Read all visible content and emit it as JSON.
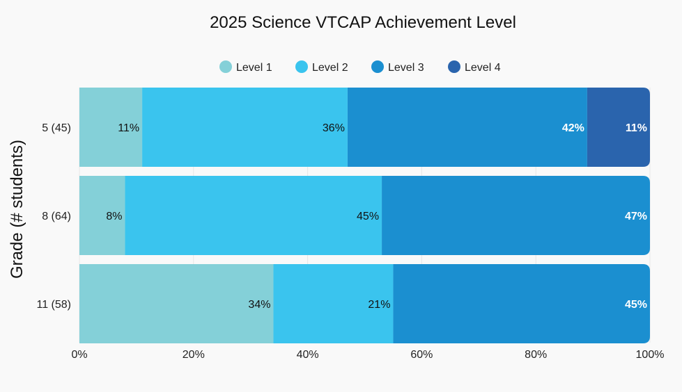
{
  "chart_data": {
    "type": "bar",
    "orientation": "horizontal",
    "stacked": true,
    "title": "2025 Science VTCAP Achievement Level",
    "xlabel": "",
    "ylabel": "Grade (# students)",
    "categories": [
      "5 (45)",
      "8 (64)",
      "11 (58)"
    ],
    "series": [
      {
        "name": "Level 1",
        "color": "#84d0d8",
        "values": [
          11,
          8,
          34
        ]
      },
      {
        "name": "Level 2",
        "color": "#3ac4ee",
        "values": [
          36,
          45,
          21
        ]
      },
      {
        "name": "Level 3",
        "color": "#1b8fd0",
        "values": [
          42,
          47,
          45
        ]
      },
      {
        "name": "Level 4",
        "color": "#2a64ad",
        "values": [
          11,
          0,
          0
        ]
      }
    ],
    "value_label_suffix": "%",
    "xlim": [
      0,
      100
    ],
    "xticks": [
      "0%",
      "20%",
      "40%",
      "60%",
      "80%",
      "100%"
    ],
    "grid": "vertical",
    "legend_position": "top-center"
  }
}
